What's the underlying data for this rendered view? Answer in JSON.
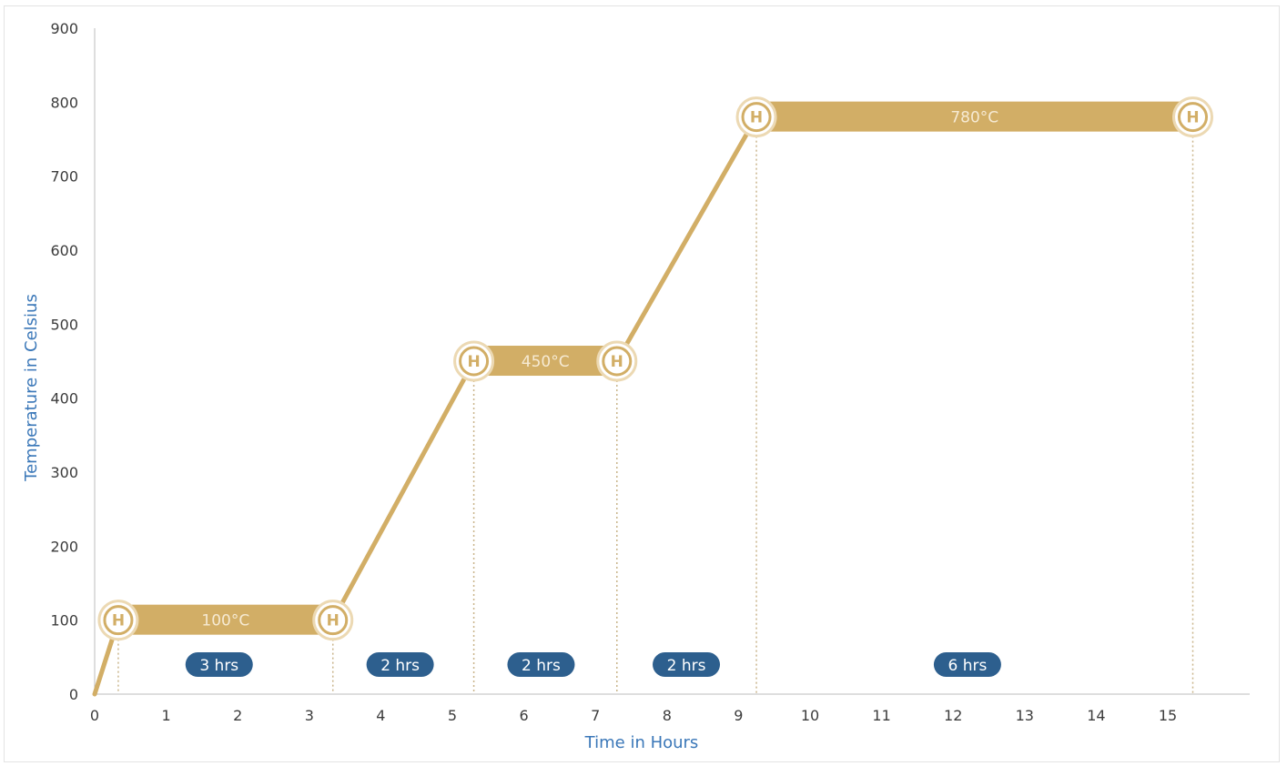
{
  "chart_data": {
    "type": "line",
    "title": "",
    "xlabel": "Time in Hours",
    "ylabel": "Temperature in Celsius",
    "xlim": [
      0,
      15.4
    ],
    "ylim": [
      0,
      900
    ],
    "xticks": [
      0,
      1,
      2,
      3,
      4,
      5,
      6,
      7,
      8,
      9,
      10,
      11,
      12,
      13,
      14,
      15
    ],
    "yticks": [
      0,
      100,
      200,
      300,
      400,
      500,
      600,
      700,
      800,
      900
    ],
    "grid": false,
    "legend": "none",
    "line_color": "#d2ae66",
    "pill_color": "#2d5f8e",
    "series": [
      {
        "x": [
          0,
          0.33,
          3.33,
          5.3,
          7.3,
          9.25,
          15.35,
          15.4
        ],
        "y": [
          0,
          100,
          100,
          450,
          450,
          780,
          780,
          770
        ]
      }
    ],
    "hold_markers": [
      {
        "x": 0.33,
        "y": 100,
        "icon": "H"
      },
      {
        "x": 3.33,
        "y": 100,
        "icon": "H"
      },
      {
        "x": 5.3,
        "y": 450,
        "icon": "H"
      },
      {
        "x": 7.3,
        "y": 450,
        "icon": "H"
      },
      {
        "x": 9.25,
        "y": 780,
        "icon": "H"
      },
      {
        "x": 15.35,
        "y": 780,
        "icon": "H"
      }
    ],
    "plateaus": [
      {
        "x_start": 0.33,
        "x_end": 3.33,
        "y": 100,
        "label": "100°C"
      },
      {
        "x_start": 5.3,
        "x_end": 7.3,
        "y": 450,
        "label": "450°C"
      },
      {
        "x_start": 9.25,
        "x_end": 15.35,
        "y": 780,
        "label": "780°C"
      }
    ],
    "dividers": [
      0.33,
      3.33,
      5.3,
      7.3,
      9.25,
      15.35
    ],
    "durations": [
      {
        "x": 1.74,
        "label": "3 hrs"
      },
      {
        "x": 4.27,
        "label": "2 hrs"
      },
      {
        "x": 6.24,
        "label": "2 hrs"
      },
      {
        "x": 8.27,
        "label": "2 hrs"
      },
      {
        "x": 12.2,
        "label": "6 hrs"
      }
    ]
  }
}
